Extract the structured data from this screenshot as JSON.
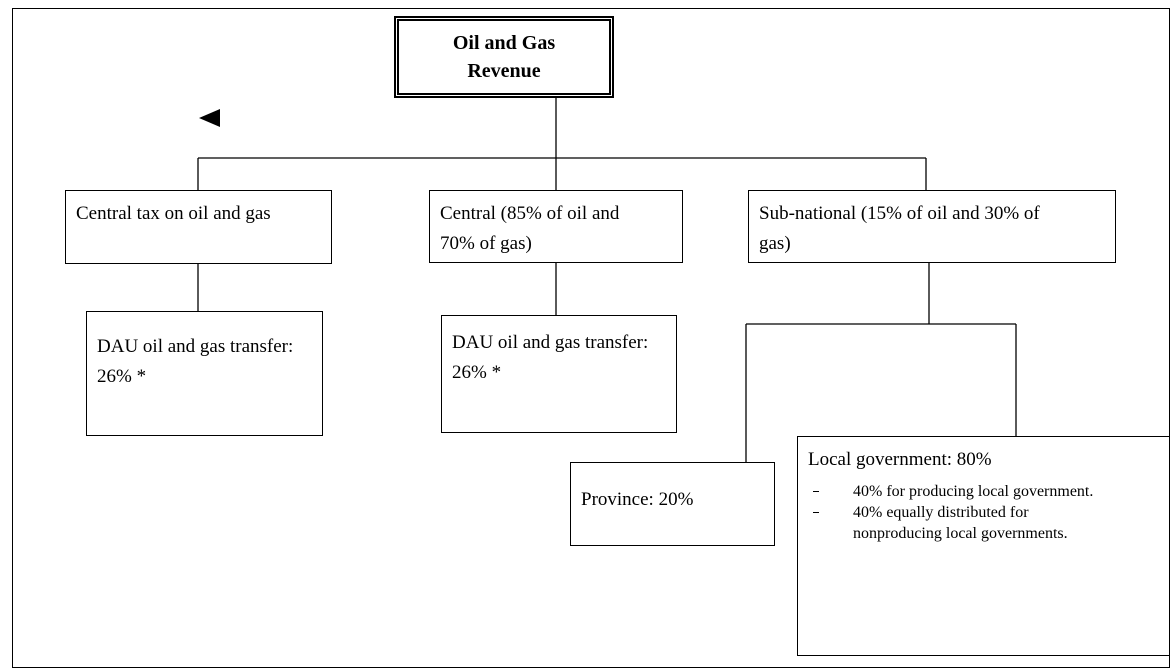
{
  "title": "Oil and Gas Revenue",
  "nodes": [
    {
      "label": "Central tax on oil and gas"
    },
    {
      "label": "Central (85% of oil and 70% of gas)"
    },
    {
      "label": "Sub-national (15% of oil and 30% of gas)"
    },
    {
      "label": "DAU oil and gas transfer: 26% *"
    },
    {
      "label": "DAU oil and gas transfer: 26% *"
    },
    {
      "label": "Province: 20%"
    },
    {
      "label": "Local government: 80%",
      "items": [
        "40% for producing local government.",
        "40% equally distributed for nonproducing local governments."
      ]
    }
  ]
}
